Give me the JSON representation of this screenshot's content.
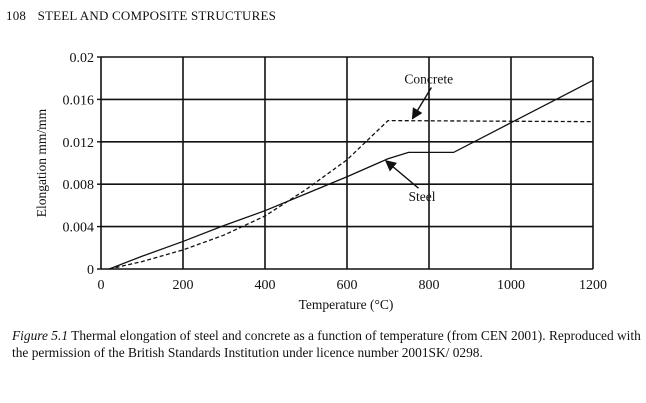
{
  "header": {
    "page_number": "108",
    "running_title": "STEEL AND COMPOSITE STRUCTURES"
  },
  "chart_data": {
    "type": "line",
    "title": "",
    "xlabel": "Temperature (°C)",
    "ylabel": "Elongation mm/mm",
    "xlim": [
      0,
      1200
    ],
    "ylim": [
      0,
      0.02
    ],
    "xticks": [
      "0",
      "200",
      "400",
      "600",
      "800",
      "1000",
      "1200"
    ],
    "yticks": [
      "0",
      "0.004",
      "0.008",
      "0.012",
      "0.016",
      "0.02"
    ],
    "grid": true,
    "series": [
      {
        "name": "Steel",
        "style": "solid",
        "x": [
          20,
          100,
          200,
          300,
          400,
          500,
          600,
          700,
          750,
          860,
          1000,
          1100,
          1200
        ],
        "y": [
          0,
          0.0012,
          0.0026,
          0.0041,
          0.0055,
          0.0071,
          0.0087,
          0.0104,
          0.011,
          0.011,
          0.0138,
          0.0158,
          0.0178
        ]
      },
      {
        "name": "Concrete",
        "style": "dashed",
        "x": [
          20,
          100,
          200,
          300,
          400,
          500,
          600,
          700,
          1200
        ],
        "y": [
          0,
          0.0007,
          0.0018,
          0.0032,
          0.005,
          0.0075,
          0.0103,
          0.014,
          0.0139
        ]
      }
    ],
    "annotations": [
      {
        "text": "Concrete",
        "at": [
          740,
          0.0175
        ],
        "arrow_to": [
          760,
          0.0142
        ]
      },
      {
        "text": "Steel",
        "at": [
          750,
          0.0064
        ],
        "arrow_to": [
          695,
          0.0102
        ]
      }
    ]
  },
  "caption": {
    "label": "Figure 5.1",
    "text": "Thermal elongation of steel and concrete as a function of temperature (from CEN 2001). Reproduced with the permission of the British Standards Institution under licence number 2001SK/ 0298."
  }
}
